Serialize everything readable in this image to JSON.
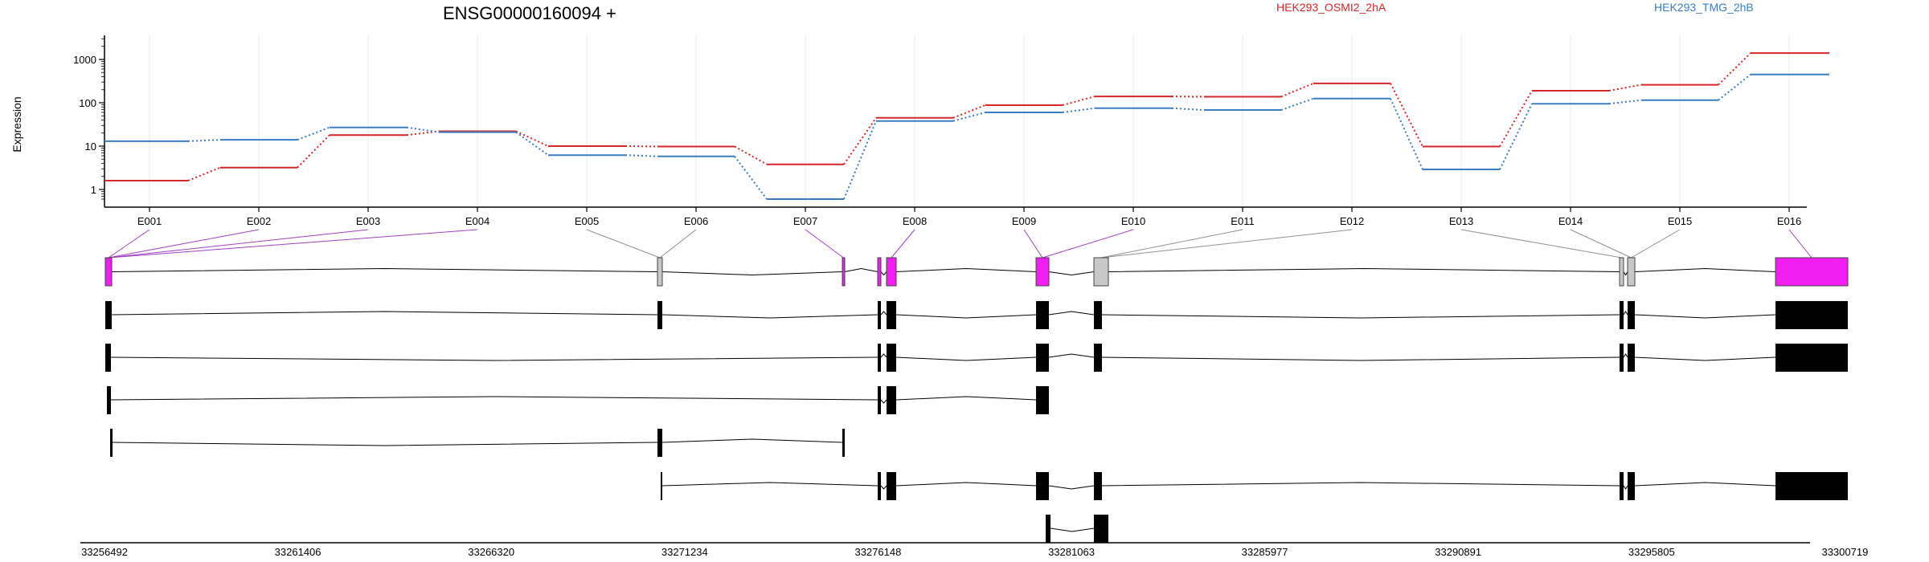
{
  "chart_data": {
    "type": "line",
    "title": "ENSG00000160094 +",
    "ylabel": "Expression",
    "yscale": "log",
    "yticks": [
      1,
      10,
      100,
      1000
    ],
    "yticks_labels": [
      "1",
      "10",
      "100",
      "1000"
    ],
    "grid": "vertical",
    "legend": "top-right",
    "categories": [
      "E001",
      "E002",
      "E003",
      "E004",
      "E005",
      "E006",
      "E007",
      "E008",
      "E009",
      "E010",
      "E011",
      "E012",
      "E013",
      "E014",
      "E015",
      "E016"
    ],
    "series": [
      {
        "name": "HEK293_OSMI2_2hA",
        "color": "#d62728",
        "values": [
          1.6,
          3.2,
          18,
          22,
          10,
          9.8,
          3.8,
          45,
          88,
          140,
          138,
          280,
          9.8,
          190,
          260,
          1400
        ]
      },
      {
        "name": "HEK293_TMG_2hB",
        "color": "#3a7dc2",
        "values": [
          13,
          14,
          27,
          21,
          6.2,
          5.8,
          0.6,
          38,
          60,
          75,
          68,
          125,
          2.9,
          95,
          115,
          450
        ]
      }
    ],
    "genomic_ticks": [
      "33256492",
      "33261406",
      "33266320",
      "33271234",
      "33276148",
      "33281063",
      "33285977",
      "33290891",
      "33295805",
      "33300719"
    ],
    "genomic_range": [
      33256492,
      33300719
    ]
  },
  "colors": {
    "highlight_exon": "#f01ef0",
    "neutral_exon": "#c8c8c8",
    "transcript_exon": "#000000",
    "connector_highlight": "#a040c0",
    "connector_neutral": "#909090"
  }
}
